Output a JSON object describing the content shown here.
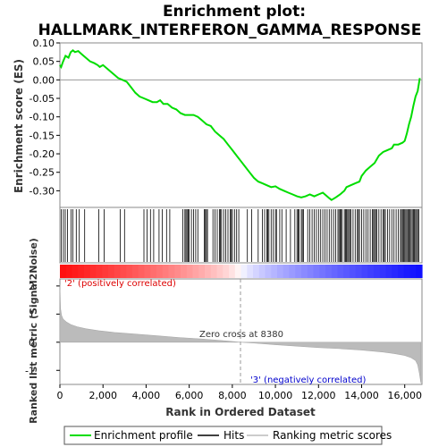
{
  "chart_data": {
    "type": "line",
    "title": "Enrichment plot:",
    "subtitle": "HALLMARK_INTERFERON_GAMMA_RESPONSE",
    "panels": {
      "es": {
        "ylabel": "Enrichment score (ES)",
        "ylim": [
          -0.345,
          0.1
        ],
        "yticks": [
          0.1,
          0.05,
          0.0,
          -0.05,
          -0.1,
          -0.15,
          -0.2,
          -0.25,
          -0.3
        ],
        "ytick_labels": [
          "0.10",
          "0.05",
          "0.00",
          "-0.05",
          "-0.10",
          "-0.15",
          "-0.20",
          "-0.25",
          "-0.30"
        ]
      },
      "metric": {
        "ylabel": "Ranked list metric (Signal2Noise)",
        "ylim": [
          -1.5,
          2.25
        ],
        "yticks": [
          2,
          1,
          0,
          -1
        ],
        "ytick_labels": [
          "2",
          "1",
          "0",
          "-1"
        ]
      }
    },
    "xlabel": "Rank in Ordered Dataset",
    "xlim": [
      0,
      16800
    ],
    "xticks": [
      0,
      2000,
      4000,
      6000,
      8000,
      10000,
      12000,
      14000,
      16000
    ],
    "xtick_labels": [
      "0",
      "2,000",
      "4,000",
      "6,000",
      "8,000",
      "10,000",
      "12,000",
      "14,000",
      "16,000"
    ],
    "zero_cross": 8380,
    "zero_cross_label": "Zero cross at 8380",
    "pos_label": "'2' (positively correlated)",
    "neg_label": "'3' (negatively correlated)",
    "legend": {
      "placement": "bottom",
      "items": [
        {
          "label": "Enrichment profile",
          "color": "#00dd00"
        },
        {
          "label": "Hits",
          "color": "#000000"
        },
        {
          "label": "Ranking metric scores",
          "color": "#bbbbbb"
        }
      ]
    },
    "series": [
      {
        "name": "Enrichment profile",
        "color": "#00dd00",
        "x": [
          0,
          60,
          150,
          260,
          400,
          500,
          600,
          700,
          850,
          1000,
          1200,
          1400,
          1600,
          1750,
          1850,
          2000,
          2200,
          2500,
          2700,
          2900,
          3100,
          3300,
          3500,
          3700,
          3900,
          4100,
          4300,
          4500,
          4650,
          4800,
          5000,
          5200,
          5400,
          5600,
          5800,
          6000,
          6200,
          6400,
          6600,
          6800,
          7000,
          7200,
          7400,
          7600,
          7800,
          8000,
          8200,
          8400,
          8600,
          8800,
          9000,
          9200,
          9400,
          9600,
          9800,
          10000,
          10200,
          10400,
          10600,
          10800,
          11000,
          11200,
          11400,
          11600,
          11800,
          12000,
          12200,
          12400,
          12500,
          12600,
          12800,
          13000,
          13200,
          13300,
          13500,
          13700,
          13900,
          14000,
          14200,
          14400,
          14600,
          14800,
          15000,
          15200,
          15400,
          15500,
          15700,
          15900,
          16000,
          16100,
          16200,
          16300,
          16400,
          16500,
          16600,
          16700
        ],
        "y": [
          0.04,
          0.035,
          0.05,
          0.065,
          0.06,
          0.075,
          0.08,
          0.075,
          0.078,
          0.07,
          0.06,
          0.05,
          0.045,
          0.04,
          0.035,
          0.04,
          0.03,
          0.015,
          0.005,
          0.0,
          -0.005,
          -0.02,
          -0.035,
          -0.045,
          -0.05,
          -0.055,
          -0.06,
          -0.06,
          -0.055,
          -0.065,
          -0.065,
          -0.075,
          -0.08,
          -0.09,
          -0.095,
          -0.095,
          -0.095,
          -0.1,
          -0.11,
          -0.12,
          -0.125,
          -0.14,
          -0.15,
          -0.16,
          -0.175,
          -0.19,
          -0.205,
          -0.22,
          -0.235,
          -0.25,
          -0.265,
          -0.275,
          -0.28,
          -0.285,
          -0.29,
          -0.288,
          -0.295,
          -0.3,
          -0.305,
          -0.31,
          -0.315,
          -0.318,
          -0.315,
          -0.31,
          -0.315,
          -0.31,
          -0.305,
          -0.315,
          -0.32,
          -0.325,
          -0.318,
          -0.31,
          -0.3,
          -0.29,
          -0.285,
          -0.28,
          -0.275,
          -0.26,
          -0.245,
          -0.235,
          -0.225,
          -0.205,
          -0.195,
          -0.19,
          -0.185,
          -0.175,
          -0.175,
          -0.17,
          -0.165,
          -0.145,
          -0.12,
          -0.1,
          -0.07,
          -0.045,
          -0.03,
          0.005
        ]
      },
      {
        "name": "Ranking metric scores",
        "color": "#bbbbbb",
        "x": [
          0,
          30,
          80,
          150,
          300,
          500,
          800,
          1200,
          1800,
          2500,
          3500,
          4500,
          5500,
          6500,
          7500,
          8380,
          9000,
          10000,
          11000,
          12000,
          13000,
          14000,
          15000,
          15500,
          16000,
          16300,
          16500,
          16600,
          16680,
          16750
        ],
        "y": [
          2.05,
          1.2,
          0.95,
          0.82,
          0.72,
          0.63,
          0.55,
          0.48,
          0.41,
          0.35,
          0.29,
          0.23,
          0.17,
          0.12,
          0.06,
          0.0,
          -0.03,
          -0.09,
          -0.14,
          -0.19,
          -0.23,
          -0.28,
          -0.35,
          -0.4,
          -0.47,
          -0.55,
          -0.65,
          -0.8,
          -1.1,
          -1.45
        ]
      }
    ],
    "hits": [
      60,
      160,
      250,
      350,
      520,
      600,
      760,
      900,
      1150,
      1800,
      2050,
      2800,
      3000,
      3900,
      4050,
      4200,
      4350,
      4600,
      4750,
      4950,
      5100,
      5700,
      5800,
      5850,
      5900,
      5950,
      6000,
      6100,
      6200,
      6300,
      6400,
      6700,
      6750,
      6800,
      6850,
      7100,
      7200,
      7300,
      7400,
      7450,
      7500,
      7600,
      7700,
      7800,
      7900,
      7950,
      8000,
      8100,
      8200,
      8300,
      8700,
      8900,
      9200,
      9400,
      9500,
      9600,
      9650,
      9700,
      9800,
      9900,
      10000,
      10050,
      10200,
      10300,
      10500,
      10700,
      10900,
      11000,
      11050,
      11100,
      11200,
      11250,
      11300,
      11500,
      11600,
      11700,
      11800,
      11900,
      12000,
      12100,
      12200,
      12300,
      12400,
      12500,
      12600,
      12700,
      12800,
      12900,
      12950,
      13000,
      13050,
      13100,
      13200,
      13250,
      13300,
      13350,
      13400,
      13450,
      13500,
      13600,
      13700,
      13800,
      13850,
      13900,
      14000,
      14100,
      14200,
      14300,
      14400,
      14500,
      14550,
      14600,
      14650,
      14700,
      14800,
      14900,
      15000,
      15050,
      15100,
      15200,
      15300,
      15400,
      15500,
      15600,
      15700,
      15800,
      15850,
      15900,
      15950,
      16000,
      16050,
      16100,
      16150,
      16200,
      16250,
      16300,
      16350,
      16400,
      16450,
      16500,
      16550,
      16600,
      16650
    ]
  }
}
